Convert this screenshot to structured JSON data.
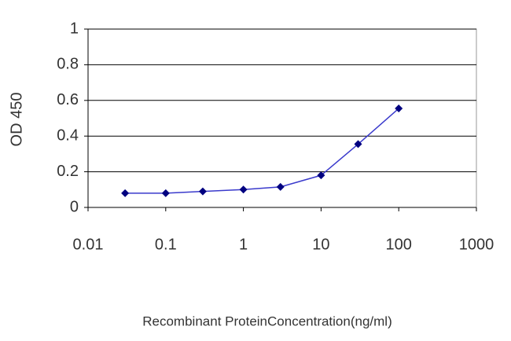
{
  "chart_data": {
    "type": "line",
    "x_label": "Recombinant ProteinConcentration(ng/ml)",
    "y_label": "OD 450",
    "x": [
      0.03,
      0.1,
      0.3,
      1,
      3,
      10,
      30,
      100
    ],
    "values": [
      0.08,
      0.08,
      0.09,
      0.1,
      0.115,
      0.18,
      0.355,
      0.555
    ],
    "color": "#3a3acc",
    "marker_color": "#000080",
    "x_log": true,
    "xlim": [
      0.01,
      1000
    ],
    "xticks": [
      0.01,
      0.1,
      1,
      10,
      100,
      1000
    ],
    "ylim": [
      0,
      1
    ],
    "yticks": [
      0,
      0.2,
      0.4,
      0.6,
      0.8,
      1
    ],
    "grid": true
  }
}
